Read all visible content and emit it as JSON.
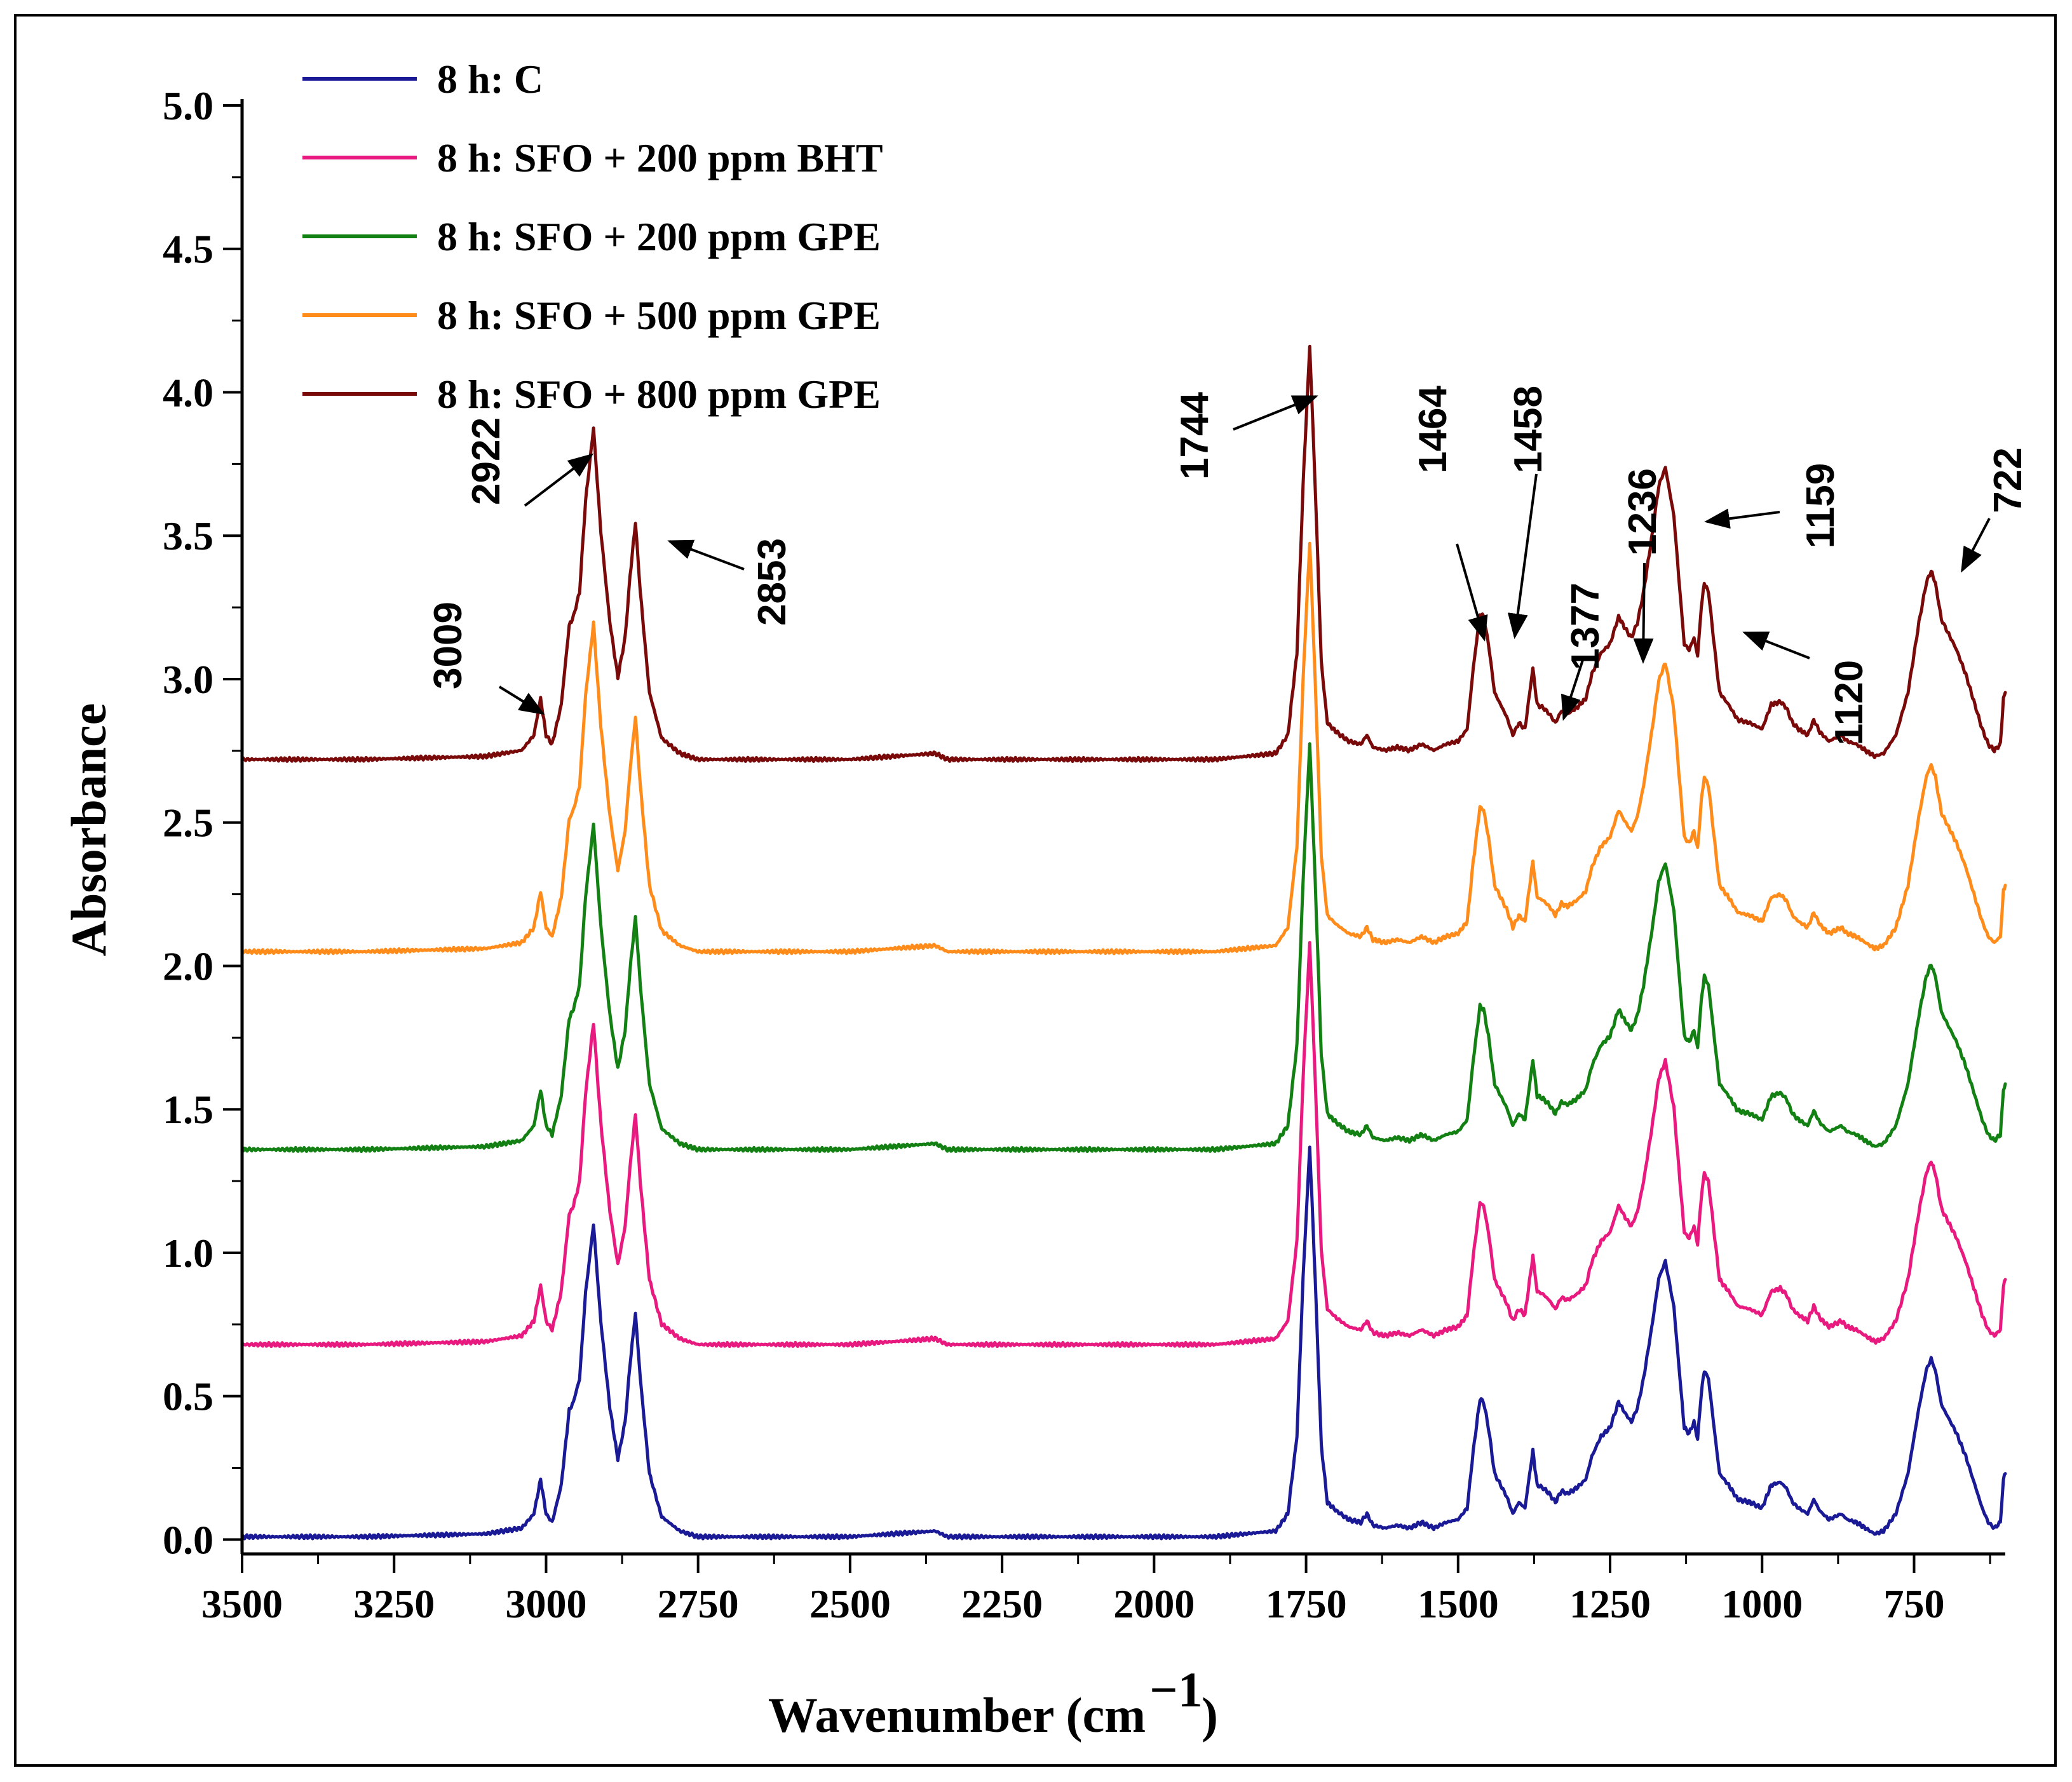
{
  "chart_data": {
    "type": "line",
    "title": "",
    "xlabel": "Wavenumber (cm",
    "xlabel_superscript": "−1",
    "xlabel_close": ")",
    "ylabel": "Absorbance",
    "xlim": [
      3500,
      600
    ],
    "ylim": [
      -0.05,
      5.0
    ],
    "x_reversed": true,
    "x_ticks": [
      3500,
      3250,
      3000,
      2750,
      2500,
      2250,
      2000,
      1750,
      1500,
      1250,
      1000,
      750
    ],
    "x_tick_labels": [
      "3500",
      "3250",
      "3000",
      "2750",
      "2500",
      "2250",
      "2000",
      "1750",
      "1500",
      "1250",
      "1000",
      "750"
    ],
    "y_ticks": [
      0.0,
      0.5,
      1.0,
      1.5,
      2.0,
      2.5,
      3.0,
      3.5,
      4.0,
      4.5,
      5.0
    ],
    "y_tick_labels": [
      "0.0",
      "0.5",
      "1.0",
      "1.5",
      "2.0",
      "2.5",
      "3.0",
      "3.5",
      "4.0",
      "4.5",
      "5.0"
    ],
    "grid": false,
    "legend_position": "top-left",
    "peak_shape": [
      [
        3500,
        0.0
      ],
      [
        3300,
        0.0
      ],
      [
        3100,
        0.01
      ],
      [
        3040,
        0.03
      ],
      [
        3020,
        0.08
      ],
      [
        3009,
        0.2
      ],
      [
        3000,
        0.08
      ],
      [
        2990,
        0.05
      ],
      [
        2975,
        0.18
      ],
      [
        2962,
        0.44
      ],
      [
        2955,
        0.47
      ],
      [
        2945,
        0.55
      ],
      [
        2935,
        0.85
      ],
      [
        2922,
        1.09
      ],
      [
        2910,
        0.75
      ],
      [
        2895,
        0.45
      ],
      [
        2882,
        0.27
      ],
      [
        2870,
        0.4
      ],
      [
        2862,
        0.6
      ],
      [
        2853,
        0.78
      ],
      [
        2845,
        0.55
      ],
      [
        2830,
        0.22
      ],
      [
        2810,
        0.07
      ],
      [
        2780,
        0.02
      ],
      [
        2750,
        0.0
      ],
      [
        2500,
        0.0
      ],
      [
        2360,
        0.02
      ],
      [
        2340,
        0.0
      ],
      [
        2100,
        0.0
      ],
      [
        1900,
        0.0
      ],
      [
        1800,
        0.02
      ],
      [
        1780,
        0.08
      ],
      [
        1765,
        0.35
      ],
      [
        1755,
        0.9
      ],
      [
        1744,
        1.36
      ],
      [
        1735,
        0.9
      ],
      [
        1725,
        0.32
      ],
      [
        1715,
        0.12
      ],
      [
        1700,
        0.09
      ],
      [
        1680,
        0.06
      ],
      [
        1660,
        0.05
      ],
      [
        1650,
        0.08
      ],
      [
        1640,
        0.04
      ],
      [
        1620,
        0.03
      ],
      [
        1600,
        0.04
      ],
      [
        1580,
        0.03
      ],
      [
        1560,
        0.05
      ],
      [
        1540,
        0.03
      ],
      [
        1520,
        0.05
      ],
      [
        1500,
        0.06
      ],
      [
        1485,
        0.1
      ],
      [
        1475,
        0.3
      ],
      [
        1464,
        0.48
      ],
      [
        1458,
        0.47
      ],
      [
        1450,
        0.38
      ],
      [
        1440,
        0.22
      ],
      [
        1430,
        0.18
      ],
      [
        1420,
        0.14
      ],
      [
        1410,
        0.08
      ],
      [
        1400,
        0.12
      ],
      [
        1390,
        0.1
      ],
      [
        1377,
        0.3
      ],
      [
        1370,
        0.18
      ],
      [
        1360,
        0.17
      ],
      [
        1350,
        0.15
      ],
      [
        1340,
        0.12
      ],
      [
        1330,
        0.16
      ],
      [
        1320,
        0.15
      ],
      [
        1305,
        0.17
      ],
      [
        1290,
        0.2
      ],
      [
        1280,
        0.28
      ],
      [
        1265,
        0.35
      ],
      [
        1250,
        0.38
      ],
      [
        1236,
        0.47
      ],
      [
        1225,
        0.43
      ],
      [
        1215,
        0.4
      ],
      [
        1205,
        0.45
      ],
      [
        1195,
        0.55
      ],
      [
        1180,
        0.75
      ],
      [
        1170,
        0.9
      ],
      [
        1159,
        0.96
      ],
      [
        1145,
        0.8
      ],
      [
        1135,
        0.55
      ],
      [
        1128,
        0.38
      ],
      [
        1120,
        0.36
      ],
      [
        1112,
        0.4
      ],
      [
        1106,
        0.34
      ],
      [
        1100,
        0.5
      ],
      [
        1095,
        0.58
      ],
      [
        1088,
        0.55
      ],
      [
        1080,
        0.4
      ],
      [
        1070,
        0.22
      ],
      [
        1055,
        0.18
      ],
      [
        1040,
        0.13
      ],
      [
        1020,
        0.12
      ],
      [
        1000,
        0.1
      ],
      [
        985,
        0.18
      ],
      [
        970,
        0.19
      ],
      [
        960,
        0.17
      ],
      [
        950,
        0.12
      ],
      [
        940,
        0.1
      ],
      [
        925,
        0.08
      ],
      [
        915,
        0.13
      ],
      [
        905,
        0.09
      ],
      [
        890,
        0.06
      ],
      [
        870,
        0.08
      ],
      [
        860,
        0.06
      ],
      [
        845,
        0.05
      ],
      [
        830,
        0.03
      ],
      [
        815,
        0.01
      ],
      [
        800,
        0.02
      ],
      [
        780,
        0.08
      ],
      [
        760,
        0.22
      ],
      [
        742,
        0.45
      ],
      [
        730,
        0.58
      ],
      [
        722,
        0.62
      ],
      [
        715,
        0.58
      ],
      [
        705,
        0.46
      ],
      [
        695,
        0.42
      ],
      [
        680,
        0.36
      ],
      [
        665,
        0.28
      ],
      [
        650,
        0.18
      ],
      [
        638,
        0.1
      ],
      [
        628,
        0.05
      ],
      [
        618,
        0.03
      ],
      [
        608,
        0.05
      ],
      [
        603,
        0.2
      ],
      [
        600,
        0.22
      ]
    ],
    "series": [
      {
        "name": "8 h: C",
        "color": "#1a1a96",
        "offset": 0.01,
        "scale": 1.0
      },
      {
        "name": "8 h: SFO + 200 ppm BHT",
        "color": "#e8197f",
        "offset": 0.68,
        "scale": 1.03
      },
      {
        "name": "8 h: SFO + 200 ppm GPE",
        "color": "#138013",
        "offset": 1.36,
        "scale": 1.04
      },
      {
        "name": "8 h: SFO + 500 ppm GPE",
        "color": "#ff8c1a",
        "offset": 2.05,
        "scale": 1.05
      },
      {
        "name": "8 h: SFO + 800 ppm GPE",
        "color": "#7a0a0a",
        "offset": 2.72,
        "scale": 1.06
      }
    ],
    "annotations": [
      {
        "label": "3009",
        "x": 3009,
        "y": 2.96
      },
      {
        "label": "2922",
        "x": 2922,
        "y": 3.87
      },
      {
        "label": "2853",
        "x": 2853,
        "y": 3.58
      },
      {
        "label": "1744",
        "x": 1744,
        "y": 4.09
      },
      {
        "label": "1464",
        "x": 1464,
        "y": 3.23
      },
      {
        "label": "1458",
        "x": 1458,
        "y": 3.22
      },
      {
        "label": "1377",
        "x": 1377,
        "y": 3.03
      },
      {
        "label": "1236",
        "x": 1236,
        "y": 3.22
      },
      {
        "label": "1159",
        "x": 1159,
        "y": 3.73
      },
      {
        "label": "1120",
        "x": 1100,
        "y": 3.33
      },
      {
        "label": "722",
        "x": 722,
        "y": 3.38
      }
    ]
  }
}
